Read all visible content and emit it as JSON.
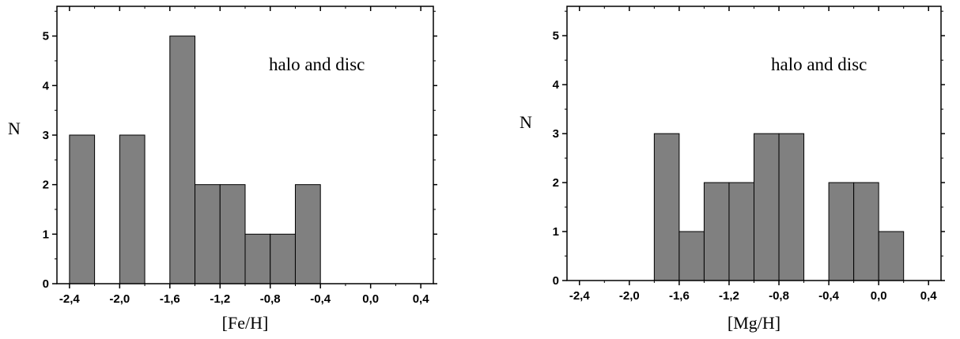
{
  "chart_data": [
    {
      "type": "bar",
      "title": "",
      "xlabel": "[Fe/H]",
      "ylabel": "N",
      "annotation": "halo and disc",
      "xlim": [
        -2.5,
        0.5
      ],
      "ylim": [
        0,
        5.6
      ],
      "xticks": [
        -2.4,
        -2.0,
        -1.6,
        -1.2,
        -0.8,
        -0.4,
        0.0,
        0.4
      ],
      "xtick_labels": [
        "-2,4",
        "-2,0",
        "-1,6",
        "-1,2",
        "-0,8",
        "-0,4",
        "0,0",
        "0,4"
      ],
      "yticks": [
        0,
        1,
        2,
        3,
        4,
        5
      ],
      "ytick_labels": [
        "0",
        "1",
        "2",
        "3",
        "4",
        "5"
      ],
      "bins": [
        {
          "x0": -2.4,
          "x1": -2.2,
          "count": 3
        },
        {
          "x0": -2.0,
          "x1": -1.8,
          "count": 3
        },
        {
          "x0": -1.6,
          "x1": -1.4,
          "count": 5
        },
        {
          "x0": -1.4,
          "x1": -1.2,
          "count": 2
        },
        {
          "x0": -1.2,
          "x1": -1.0,
          "count": 2
        },
        {
          "x0": -1.0,
          "x1": -0.8,
          "count": 1
        },
        {
          "x0": -0.8,
          "x1": -0.6,
          "count": 1
        },
        {
          "x0": -0.6,
          "x1": -0.4,
          "count": 2
        }
      ]
    },
    {
      "type": "bar",
      "title": "",
      "xlabel": "[Mg/H]",
      "ylabel": "N",
      "annotation": "halo and disc",
      "xlim": [
        -2.5,
        0.5
      ],
      "ylim": [
        0,
        5.6
      ],
      "xticks": [
        -2.4,
        -2.0,
        -1.6,
        -1.2,
        -0.8,
        -0.4,
        0.0,
        0.4
      ],
      "xtick_labels": [
        "-2,4",
        "-2,0",
        "-1,6",
        "-1,2",
        "-0,8",
        "-0,4",
        "0,0",
        "0,4"
      ],
      "yticks": [
        0,
        1,
        2,
        3,
        4,
        5
      ],
      "ytick_labels": [
        "0",
        "1",
        "2",
        "3",
        "4",
        "5"
      ],
      "bins": [
        {
          "x0": -1.8,
          "x1": -1.6,
          "count": 3
        },
        {
          "x0": -1.6,
          "x1": -1.4,
          "count": 1
        },
        {
          "x0": -1.4,
          "x1": -1.2,
          "count": 2
        },
        {
          "x0": -1.2,
          "x1": -1.0,
          "count": 2
        },
        {
          "x0": -1.0,
          "x1": -0.8,
          "count": 3
        },
        {
          "x0": -0.8,
          "x1": -0.6,
          "count": 3
        },
        {
          "x0": -0.4,
          "x1": -0.2,
          "count": 2
        },
        {
          "x0": -0.2,
          "x1": 0.0,
          "count": 2
        },
        {
          "x0": 0.0,
          "x1": 0.2,
          "count": 1
        }
      ]
    }
  ]
}
